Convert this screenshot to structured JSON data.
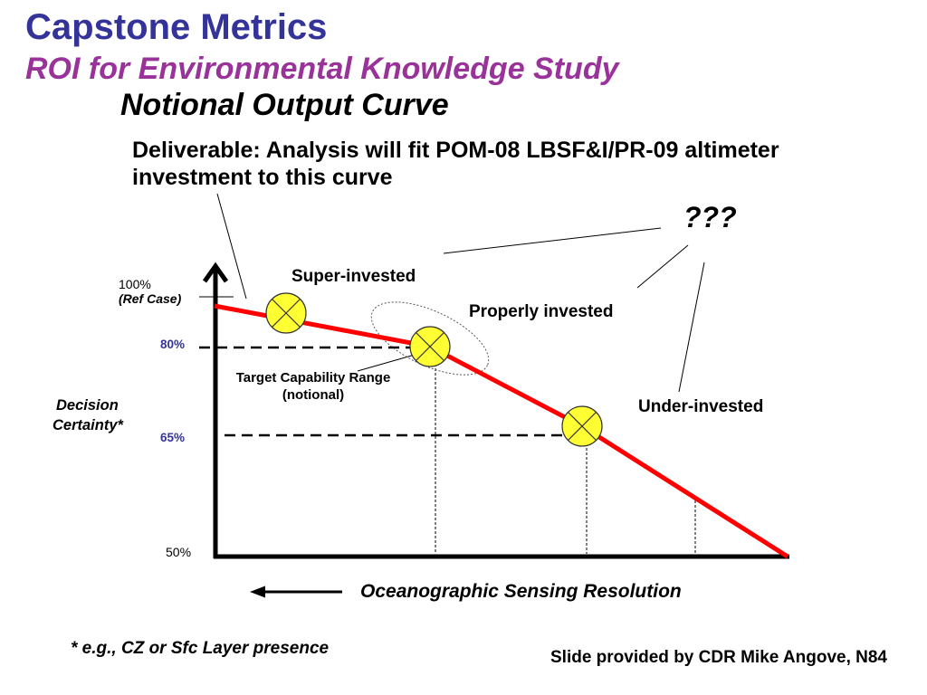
{
  "slide": {
    "title": "Capstone Metrics",
    "subtitle": "ROI for Environmental Knowledge Study",
    "heading": "Notional Output Curve",
    "deliverable_line1": "Deliverable: Analysis will fit POM-08 LBSF&I/PR-09 altimeter",
    "deliverable_line2": "investment to this curve",
    "question": "???",
    "footnote": "* e.g., CZ or Sfc Layer presence",
    "credit": "Slide provided by CDR Mike Angove, N84"
  },
  "diagram": {
    "y_axis_label_line1": "Decision",
    "y_axis_label_line2": "Certainty*",
    "x_axis_label": "Oceanographic Sensing Resolution",
    "y_ticks": {
      "ref": "100%",
      "ref_note": "(Ref Case)",
      "t80": "80%",
      "t65": "65%",
      "t50": "50%"
    },
    "regions": {
      "super": "Super-invested",
      "proper": "Properly invested",
      "under": "Under-invested"
    },
    "target_range_line1": "Target Capability Range",
    "target_range_line2": "(notional)",
    "marker_icon": "x-circle-marker",
    "direction_icon": "left-arrow-icon"
  },
  "colors": {
    "title": "#333399",
    "subtitle": "#993399",
    "tick_highlight": "#333399",
    "curve": "#ff0000",
    "marker": "#ffff33",
    "axis": "#000000"
  }
}
